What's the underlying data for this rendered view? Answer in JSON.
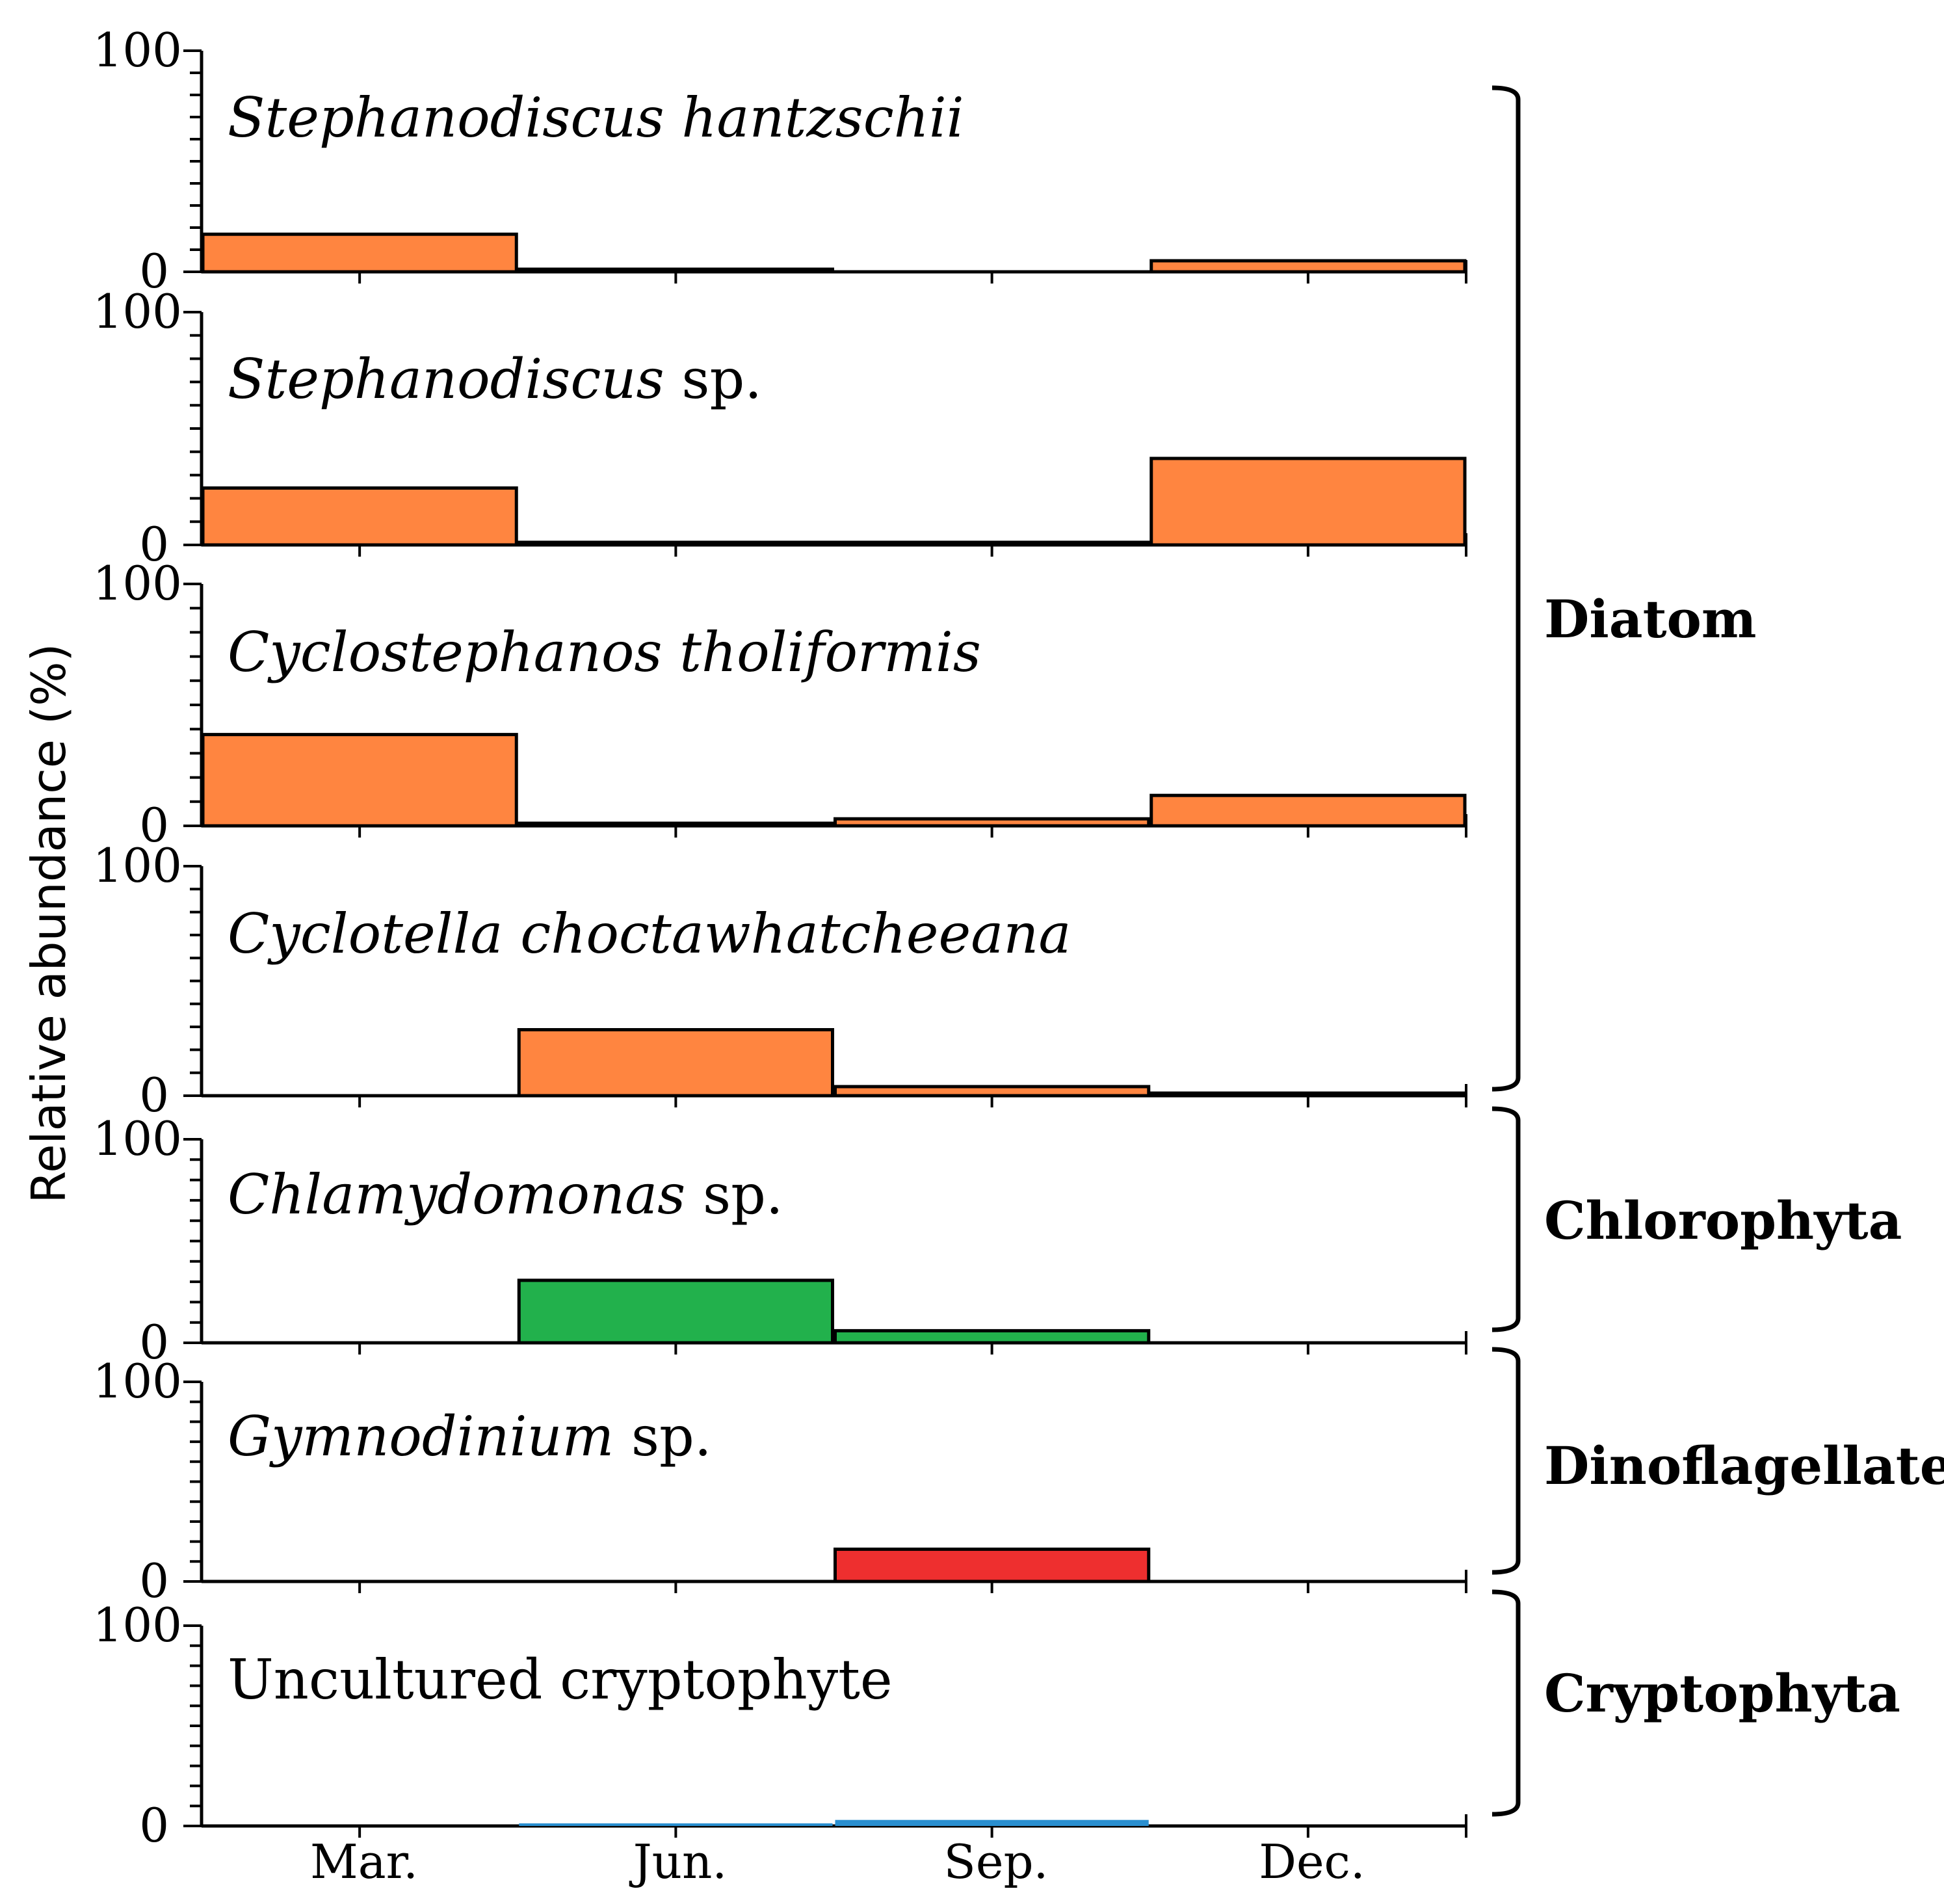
{
  "chart_data": {
    "type": "bar",
    "ylabel": "Relative abundance (%)",
    "months": [
      "Mar.",
      "Jun.",
      "Sep.",
      "Dec."
    ],
    "ylim": [
      0,
      100
    ],
    "ytick_labels": [
      "0",
      "100"
    ],
    "panels": [
      {
        "name_italic": "Stephanodiscus hantzschii",
        "name_roman": "",
        "group": "Diatom",
        "color": "#FF8540",
        "values": [
          17,
          0.5,
          0,
          5
        ]
      },
      {
        "name_italic": "Stephanodiscus",
        "name_roman": " sp.",
        "group": "Diatom",
        "color": "#FF8540",
        "values": [
          25,
          0.5,
          1,
          38
        ]
      },
      {
        "name_italic": "Cyclostephanos tholiformis",
        "name_roman": "",
        "group": "Diatom",
        "color": "#FF8540",
        "values": [
          39,
          0.5,
          3,
          13
        ]
      },
      {
        "name_italic": "Cyclotella choctawhatcheeana",
        "name_roman": "",
        "group": "Diatom",
        "color": "#FF8540",
        "values": [
          0,
          29,
          4,
          1
        ]
      },
      {
        "name_italic": "Chlamydomonas",
        "name_roman": " sp.",
        "group": "Chlorophyta",
        "color": "#22B14C",
        "values": [
          0,
          31,
          6,
          0
        ]
      },
      {
        "name_italic": "Gymnodinium",
        "name_roman": " sp.",
        "group": "Dinoflagellate",
        "color": "#EE2F2F",
        "values": [
          0,
          0,
          16,
          0
        ]
      },
      {
        "name_italic": "",
        "name_roman": "Uncultured cryptophyte",
        "group": "Cryptophyta",
        "color": "#2A8FD0",
        "values": [
          0,
          1,
          3,
          0
        ]
      }
    ],
    "groups": [
      {
        "label": "Diatom"
      },
      {
        "label": "Chlorophyta"
      },
      {
        "label": "Dinoflagellate"
      },
      {
        "label": "Cryptophyta"
      }
    ]
  }
}
